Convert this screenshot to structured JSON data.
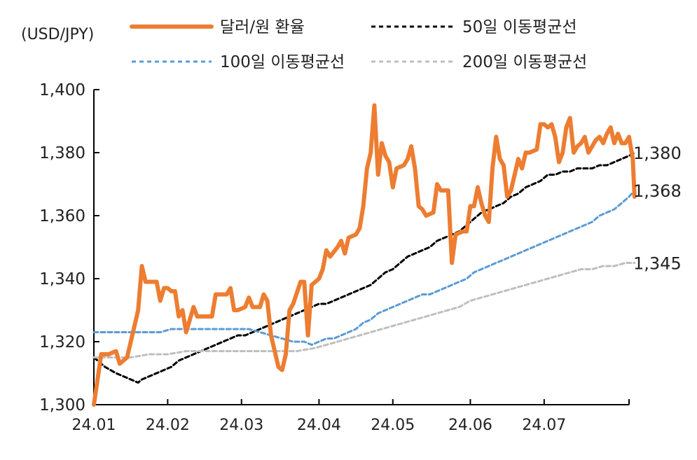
{
  "chart_data": {
    "type": "line",
    "unit_label": "(USD/JPY)",
    "ylim": [
      1300,
      1400
    ],
    "y_ticks": [
      1300,
      1320,
      1340,
      1360,
      1380,
      1400
    ],
    "y_tick_labels": [
      "1,300",
      "1,320",
      "1,340",
      "1,360",
      "1,380",
      "1,400"
    ],
    "x_range": [
      0,
      145
    ],
    "x_ticks": [
      0,
      20,
      40,
      61,
      81,
      102,
      122
    ],
    "x_tick_labels": [
      "24.01",
      "24.02",
      "24.03",
      "24.04",
      "24.05",
      "24.06",
      "24.07"
    ],
    "colors": {
      "usdjpy": "#ED7D31",
      "ma50": "#000000",
      "ma100": "#5B9BD5",
      "ma200": "#BFBFBF",
      "axis": "#000000"
    },
    "series": [
      {
        "key": "usdjpy",
        "name": "달러/원 환율",
        "style": "solid",
        "points": [
          [
            0,
            1300
          ],
          [
            2,
            1316
          ],
          [
            4,
            1316
          ],
          [
            6,
            1317
          ],
          [
            7,
            1313
          ],
          [
            9,
            1315
          ],
          [
            10,
            1320
          ],
          [
            12,
            1330
          ],
          [
            13,
            1344
          ],
          [
            14,
            1339
          ],
          [
            16,
            1339
          ],
          [
            17,
            1339
          ],
          [
            18,
            1333
          ],
          [
            19,
            1337
          ],
          [
            20,
            1337
          ],
          [
            21,
            1336
          ],
          [
            22,
            1336
          ],
          [
            23,
            1328
          ],
          [
            24,
            1330
          ],
          [
            25,
            1323
          ],
          [
            26,
            1327
          ],
          [
            27,
            1331
          ],
          [
            28,
            1328
          ],
          [
            29,
            1328
          ],
          [
            31,
            1328
          ],
          [
            32,
            1328
          ],
          [
            33,
            1335
          ],
          [
            34,
            1335
          ],
          [
            36,
            1335
          ],
          [
            37,
            1337
          ],
          [
            38,
            1330
          ],
          [
            39,
            1330
          ],
          [
            41,
            1331
          ],
          [
            42,
            1334
          ],
          [
            43,
            1331
          ],
          [
            45,
            1331
          ],
          [
            46,
            1335
          ],
          [
            47,
            1333
          ],
          [
            48,
            1322
          ],
          [
            49,
            1317
          ],
          [
            50,
            1312
          ],
          [
            51,
            1311
          ],
          [
            52,
            1316
          ],
          [
            53,
            1330
          ],
          [
            54,
            1332
          ],
          [
            56,
            1339
          ],
          [
            57,
            1339
          ],
          [
            58,
            1322
          ],
          [
            59,
            1338
          ],
          [
            61,
            1340
          ],
          [
            62,
            1343
          ],
          [
            63,
            1349
          ],
          [
            64,
            1347
          ],
          [
            66,
            1350
          ],
          [
            67,
            1352
          ],
          [
            68,
            1348
          ],
          [
            69,
            1353
          ],
          [
            71,
            1354
          ],
          [
            72,
            1356
          ],
          [
            73,
            1363
          ],
          [
            74,
            1375
          ],
          [
            75,
            1380
          ],
          [
            76,
            1395
          ],
          [
            77,
            1373
          ],
          [
            78,
            1383
          ],
          [
            79,
            1379
          ],
          [
            80,
            1377
          ],
          [
            81,
            1369
          ],
          [
            82,
            1375
          ],
          [
            84,
            1376
          ],
          [
            85,
            1378
          ],
          [
            86,
            1382
          ],
          [
            87,
            1375
          ],
          [
            88,
            1363
          ],
          [
            89,
            1362
          ],
          [
            90,
            1360
          ],
          [
            92,
            1361
          ],
          [
            93,
            1370
          ],
          [
            94,
            1368
          ],
          [
            96,
            1368
          ],
          [
            97,
            1345
          ],
          [
            98,
            1354
          ],
          [
            100,
            1355
          ],
          [
            101,
            1355
          ],
          [
            102,
            1363
          ],
          [
            103,
            1363
          ],
          [
            104,
            1369
          ],
          [
            105,
            1364
          ],
          [
            106,
            1360
          ],
          [
            107,
            1358
          ],
          [
            108,
            1375
          ],
          [
            109,
            1385
          ],
          [
            110,
            1378
          ],
          [
            111,
            1376
          ],
          [
            112,
            1366
          ],
          [
            113,
            1368
          ],
          [
            114,
            1373
          ],
          [
            115,
            1378
          ],
          [
            116,
            1375
          ],
          [
            117,
            1380
          ],
          [
            118,
            1380
          ],
          [
            120,
            1381
          ],
          [
            121,
            1389
          ],
          [
            122,
            1389
          ],
          [
            123,
            1388
          ],
          [
            124,
            1389
          ],
          [
            125,
            1385
          ],
          [
            126,
            1377
          ],
          [
            127,
            1380
          ],
          [
            128,
            1388
          ],
          [
            129,
            1391
          ],
          [
            130,
            1380
          ],
          [
            131,
            1382
          ],
          [
            132,
            1383
          ],
          [
            133,
            1385
          ],
          [
            134,
            1380
          ],
          [
            135,
            1382
          ],
          [
            136,
            1384
          ],
          [
            137,
            1385
          ],
          [
            138,
            1383
          ],
          [
            139,
            1386
          ],
          [
            140,
            1388
          ],
          [
            141,
            1383
          ],
          [
            142,
            1386
          ],
          [
            143,
            1383
          ],
          [
            144,
            1383
          ],
          [
            145,
            1385
          ],
          [
            146,
            1378
          ],
          [
            146.5,
            1366
          ]
        ]
      },
      {
        "key": "ma50",
        "name": "50일 이동평균선",
        "style": "dashed",
        "end_label": "1,380",
        "end_value": 1380,
        "points": [
          [
            0,
            1315
          ],
          [
            3,
            1312
          ],
          [
            6,
            1310
          ],
          [
            8,
            1309
          ],
          [
            10,
            1308
          ],
          [
            12,
            1307
          ],
          [
            13,
            1308
          ],
          [
            15,
            1309
          ],
          [
            17,
            1310
          ],
          [
            19,
            1311
          ],
          [
            21,
            1312
          ],
          [
            23,
            1314
          ],
          [
            25,
            1315
          ],
          [
            27,
            1316
          ],
          [
            29,
            1317
          ],
          [
            31,
            1318
          ],
          [
            33,
            1319
          ],
          [
            35,
            1320
          ],
          [
            37,
            1321
          ],
          [
            39,
            1322
          ],
          [
            41,
            1322
          ],
          [
            43,
            1323
          ],
          [
            45,
            1324
          ],
          [
            47,
            1325
          ],
          [
            49,
            1326
          ],
          [
            51,
            1327
          ],
          [
            53,
            1328
          ],
          [
            55,
            1329
          ],
          [
            57,
            1330
          ],
          [
            59,
            1331
          ],
          [
            61,
            1332
          ],
          [
            63,
            1332
          ],
          [
            65,
            1333
          ],
          [
            67,
            1334
          ],
          [
            69,
            1335
          ],
          [
            71,
            1336
          ],
          [
            73,
            1337
          ],
          [
            75,
            1338
          ],
          [
            77,
            1340
          ],
          [
            79,
            1342
          ],
          [
            81,
            1343
          ],
          [
            83,
            1345
          ],
          [
            85,
            1347
          ],
          [
            87,
            1348
          ],
          [
            89,
            1349
          ],
          [
            91,
            1350
          ],
          [
            93,
            1352
          ],
          [
            95,
            1353
          ],
          [
            97,
            1354
          ],
          [
            99,
            1355
          ],
          [
            101,
            1357
          ],
          [
            103,
            1359
          ],
          [
            105,
            1361
          ],
          [
            107,
            1362
          ],
          [
            109,
            1363
          ],
          [
            111,
            1364
          ],
          [
            113,
            1366
          ],
          [
            115,
            1367
          ],
          [
            117,
            1369
          ],
          [
            119,
            1370
          ],
          [
            121,
            1371
          ],
          [
            123,
            1373
          ],
          [
            125,
            1373
          ],
          [
            127,
            1374
          ],
          [
            129,
            1374
          ],
          [
            131,
            1375
          ],
          [
            133,
            1375
          ],
          [
            135,
            1375
          ],
          [
            137,
            1376
          ],
          [
            139,
            1376
          ],
          [
            141,
            1377
          ],
          [
            143,
            1378
          ],
          [
            145,
            1379
          ],
          [
            146.5,
            1380
          ]
        ]
      },
      {
        "key": "ma100",
        "name": "100일 이동평균선",
        "style": "dashed",
        "end_label": "1,368",
        "end_value": 1368,
        "points": [
          [
            0,
            1323
          ],
          [
            3,
            1323
          ],
          [
            6,
            1323
          ],
          [
            9,
            1323
          ],
          [
            12,
            1323
          ],
          [
            15,
            1323
          ],
          [
            18,
            1323
          ],
          [
            21,
            1324
          ],
          [
            24,
            1324
          ],
          [
            27,
            1324
          ],
          [
            30,
            1324
          ],
          [
            33,
            1324
          ],
          [
            36,
            1324
          ],
          [
            39,
            1324
          ],
          [
            42,
            1324
          ],
          [
            45,
            1323
          ],
          [
            48,
            1322
          ],
          [
            51,
            1321
          ],
          [
            54,
            1320
          ],
          [
            57,
            1320
          ],
          [
            59,
            1319
          ],
          [
            61,
            1320
          ],
          [
            63,
            1321
          ],
          [
            65,
            1321
          ],
          [
            67,
            1322
          ],
          [
            69,
            1323
          ],
          [
            71,
            1324
          ],
          [
            73,
            1326
          ],
          [
            75,
            1327
          ],
          [
            77,
            1329
          ],
          [
            79,
            1330
          ],
          [
            81,
            1331
          ],
          [
            83,
            1332
          ],
          [
            85,
            1333
          ],
          [
            87,
            1334
          ],
          [
            89,
            1335
          ],
          [
            91,
            1335
          ],
          [
            93,
            1336
          ],
          [
            95,
            1337
          ],
          [
            97,
            1338
          ],
          [
            99,
            1339
          ],
          [
            101,
            1340
          ],
          [
            103,
            1342
          ],
          [
            105,
            1343
          ],
          [
            107,
            1344
          ],
          [
            109,
            1345
          ],
          [
            111,
            1346
          ],
          [
            113,
            1347
          ],
          [
            115,
            1348
          ],
          [
            117,
            1349
          ],
          [
            119,
            1350
          ],
          [
            121,
            1351
          ],
          [
            123,
            1352
          ],
          [
            125,
            1353
          ],
          [
            127,
            1354
          ],
          [
            129,
            1355
          ],
          [
            131,
            1356
          ],
          [
            133,
            1357
          ],
          [
            135,
            1358
          ],
          [
            137,
            1360
          ],
          [
            139,
            1361
          ],
          [
            141,
            1362
          ],
          [
            143,
            1364
          ],
          [
            145,
            1366
          ],
          [
            146.5,
            1368
          ]
        ]
      },
      {
        "key": "ma200",
        "name": "200일 이동평균선",
        "style": "dashed",
        "end_label": "1,345",
        "end_value": 1345,
        "points": [
          [
            0,
            1315
          ],
          [
            5,
            1315
          ],
          [
            10,
            1315
          ],
          [
            15,
            1316
          ],
          [
            20,
            1316
          ],
          [
            25,
            1317
          ],
          [
            30,
            1317
          ],
          [
            35,
            1317
          ],
          [
            40,
            1317
          ],
          [
            45,
            1317
          ],
          [
            50,
            1317
          ],
          [
            55,
            1317
          ],
          [
            60,
            1318
          ],
          [
            63,
            1319
          ],
          [
            66,
            1320
          ],
          [
            69,
            1321
          ],
          [
            72,
            1322
          ],
          [
            75,
            1323
          ],
          [
            78,
            1324
          ],
          [
            81,
            1325
          ],
          [
            84,
            1326
          ],
          [
            87,
            1327
          ],
          [
            90,
            1328
          ],
          [
            93,
            1329
          ],
          [
            96,
            1330
          ],
          [
            99,
            1331
          ],
          [
            102,
            1333
          ],
          [
            105,
            1334
          ],
          [
            108,
            1335
          ],
          [
            111,
            1336
          ],
          [
            114,
            1337
          ],
          [
            117,
            1338
          ],
          [
            120,
            1339
          ],
          [
            123,
            1340
          ],
          [
            126,
            1341
          ],
          [
            129,
            1342
          ],
          [
            132,
            1343
          ],
          [
            135,
            1343
          ],
          [
            138,
            1344
          ],
          [
            141,
            1344
          ],
          [
            144,
            1345
          ],
          [
            146.5,
            1345
          ]
        ]
      }
    ]
  }
}
